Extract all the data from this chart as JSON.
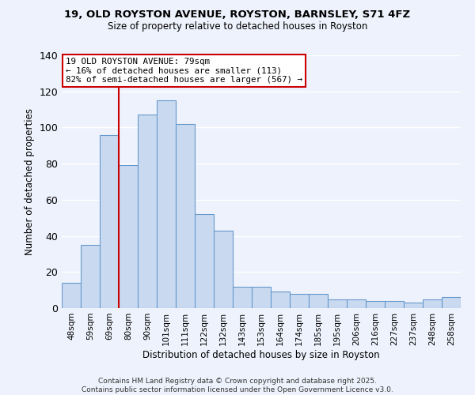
{
  "title_line1": "19, OLD ROYSTON AVENUE, ROYSTON, BARNSLEY, S71 4FZ",
  "title_line2": "Size of property relative to detached houses in Royston",
  "xlabel": "Distribution of detached houses by size in Royston",
  "ylabel": "Number of detached properties",
  "bar_labels": [
    "48sqm",
    "59sqm",
    "69sqm",
    "80sqm",
    "90sqm",
    "101sqm",
    "111sqm",
    "122sqm",
    "132sqm",
    "143sqm",
    "153sqm",
    "164sqm",
    "174sqm",
    "185sqm",
    "195sqm",
    "206sqm",
    "216sqm",
    "227sqm",
    "237sqm",
    "248sqm",
    "258sqm"
  ],
  "bar_values": [
    14,
    35,
    96,
    79,
    107,
    115,
    102,
    52,
    43,
    12,
    12,
    9,
    8,
    8,
    5,
    5,
    4,
    4,
    3,
    5,
    6
  ],
  "bar_color": "#c9d9f0",
  "bar_edge_color": "#6699cc",
  "annotation_line1": "19 OLD ROYSTON AVENUE: 79sqm",
  "annotation_line2": "← 16% of detached houses are smaller (113)",
  "annotation_line3": "82% of semi-detached houses are larger (567) →",
  "vline_color": "#cc0000",
  "annotation_box_edgecolor": "#cc0000",
  "footer_line1": "Contains HM Land Registry data © Crown copyright and database right 2025.",
  "footer_line2": "Contains public sector information licensed under the Open Government Licence v3.0.",
  "ylim": [
    0,
    140
  ],
  "background_color": "#eef2fc",
  "grid_color": "#ffffff",
  "yticks": [
    0,
    20,
    40,
    60,
    80,
    100,
    120,
    140
  ]
}
